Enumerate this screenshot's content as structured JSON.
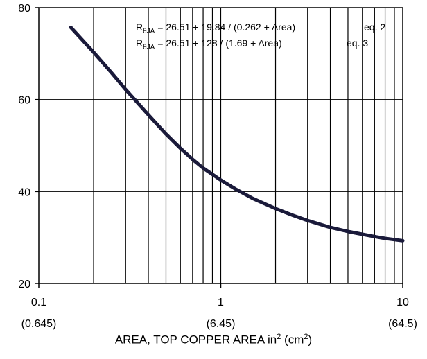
{
  "chart_data": {
    "type": "line",
    "x_scale": "log",
    "xlim": [
      0.1,
      10
    ],
    "ylim": [
      20,
      80
    ],
    "grid": true,
    "y_ticks": [
      20,
      40,
      60,
      80
    ],
    "x_ticks": [
      {
        "value": 0.1,
        "label": "0.1",
        "sublabel": "(0.645)"
      },
      {
        "value": 1,
        "label": "1",
        "sublabel": "(6.45)"
      },
      {
        "value": 10,
        "label": "10",
        "sublabel": "(64.5)"
      }
    ],
    "xlabel": {
      "text": "AREA, TOP COPPER AREA in",
      "unit1_sup": "2",
      "unit_open": " (cm",
      "unit2_sup": "2",
      "unit_close": ")"
    },
    "annotations": [
      {
        "symbol": "R",
        "sub": "θJA",
        "text": " = 26.51 + 19.84 / (0.262 + Area)",
        "eq": "eq. 2"
      },
      {
        "symbol": "R",
        "sub": "θJA",
        "text": " = 26.51 + 128 / (1.69 + Area)",
        "eq": "eq. 3"
      }
    ],
    "series": [
      {
        "x": [
          0.15,
          0.2,
          0.25,
          0.3,
          0.4,
          0.5,
          0.6,
          0.7,
          0.8,
          1.0,
          1.2,
          1.5,
          2,
          2.5,
          3,
          4,
          5,
          6,
          7,
          8,
          10
        ],
        "y": [
          75.7,
          70.3,
          65.9,
          62.2,
          56.7,
          52.5,
          49.4,
          47.0,
          45.1,
          42.5,
          40.6,
          38.5,
          36.3,
          34.8,
          33.7,
          32.2,
          31.3,
          30.7,
          30.2,
          29.8,
          29.3
        ]
      }
    ]
  }
}
